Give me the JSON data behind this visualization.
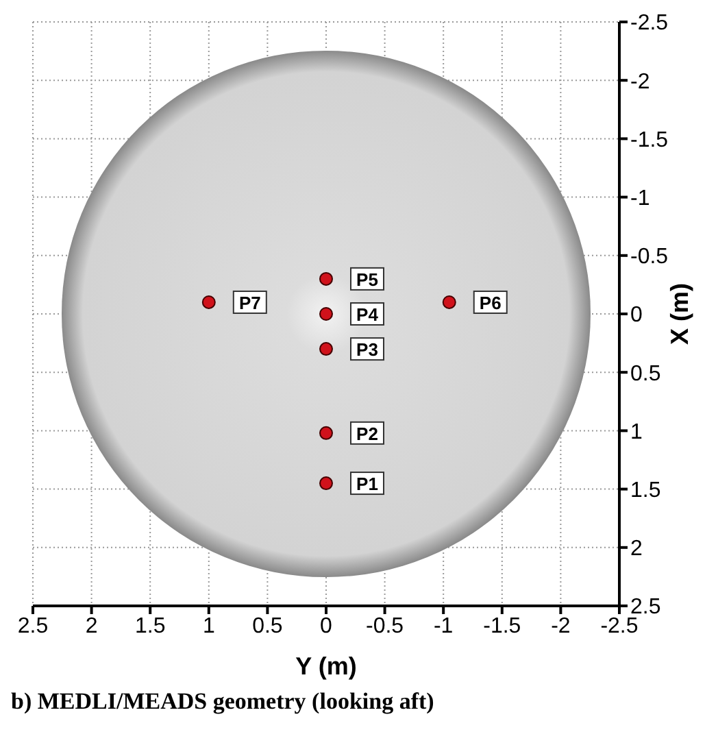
{
  "chart_data": {
    "type": "scatter",
    "title": "b)  MEDLI/MEADS geometry (looking aft)",
    "xlabel": "Y (m)",
    "ylabel": "X (m)",
    "x": [
      0,
      0,
      0,
      0,
      0,
      -1.05,
      1.0
    ],
    "values": [
      1.45,
      1.02,
      0.3,
      0,
      -0.3,
      -0.1,
      -0.1
    ],
    "color": "#d0121b",
    "marker": "circle",
    "grid": true,
    "xlim": [
      2.5,
      -2.5
    ],
    "xticks": [
      2.5,
      2,
      1.5,
      1,
      0.5,
      0,
      -0.5,
      -1,
      -1.5,
      -2,
      -2.5
    ],
    "ylim": [
      2.5,
      -2.5
    ],
    "yticks": [
      -2.5,
      -2,
      -1.5,
      -1,
      -0.5,
      0,
      0.5,
      1,
      1.5,
      2,
      2.5
    ],
    "annotations": [
      {
        "text": "P1",
        "x": 0,
        "y": 1.45
      },
      {
        "text": "P2",
        "x": 0,
        "y": 1.02
      },
      {
        "text": "P3",
        "x": 0,
        "y": 0.3
      },
      {
        "text": "P4",
        "x": 0,
        "y": 0
      },
      {
        "text": "P5",
        "x": 0,
        "y": -0.3
      },
      {
        "text": "P6",
        "x": -1.05,
        "y": -0.1
      },
      {
        "text": "P7",
        "x": 1.0,
        "y": -0.1
      }
    ]
  }
}
